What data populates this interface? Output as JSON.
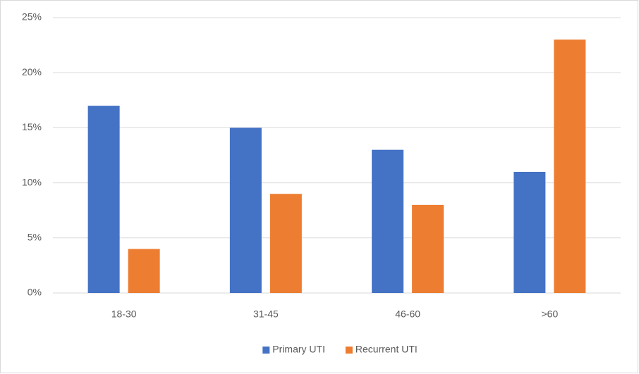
{
  "chart_data": {
    "type": "bar",
    "categories": [
      "18-30",
      "31-45",
      "46-60",
      ">60"
    ],
    "series": [
      {
        "name": "Primary UTI",
        "color": "#4472c4",
        "values": [
          17,
          15,
          13,
          11
        ]
      },
      {
        "name": "Recurrent UTI",
        "color": "#ed7d31",
        "values": [
          4,
          9,
          8,
          23
        ]
      }
    ],
    "ylim": [
      0,
      25
    ],
    "yticks": [
      {
        "value": 0,
        "label": "0%"
      },
      {
        "value": 5,
        "label": "5%"
      },
      {
        "value": 10,
        "label": "10%"
      },
      {
        "value": 15,
        "label": "15%"
      },
      {
        "value": 20,
        "label": "20%"
      },
      {
        "value": 25,
        "label": "25%"
      }
    ],
    "grid": true,
    "legend": "bottom"
  }
}
